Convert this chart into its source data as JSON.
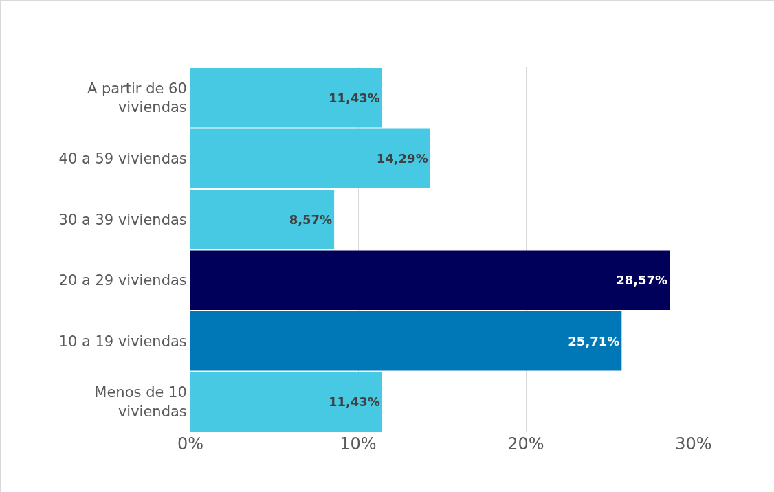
{
  "chart_data": {
    "type": "bar",
    "orientation": "horizontal",
    "categories": [
      "A partir de 60\nviviendas",
      "40 a 59 viviendas",
      "30 a 39 viviendas",
      "20 a 29 viviendas",
      "10 a 19 viviendas",
      "Menos de 10\nviviendas"
    ],
    "values": [
      11.43,
      14.29,
      8.57,
      28.57,
      25.71,
      11.43
    ],
    "value_labels": [
      "11,43%",
      "14,29%",
      "8,57%",
      "28,57%",
      "25,71%",
      "11,43%"
    ],
    "colors": [
      "#48c9e3",
      "#48c9e3",
      "#48c9e3",
      "#00005a",
      "#0077b6",
      "#48c9e3"
    ],
    "xlim": [
      0,
      30
    ],
    "xticks": [
      {
        "value": 0,
        "label": "0%"
      },
      {
        "value": 10,
        "label": "10%"
      },
      {
        "value": 20,
        "label": "20%"
      },
      {
        "value": 30,
        "label": "30%"
      }
    ],
    "grid": "x"
  }
}
